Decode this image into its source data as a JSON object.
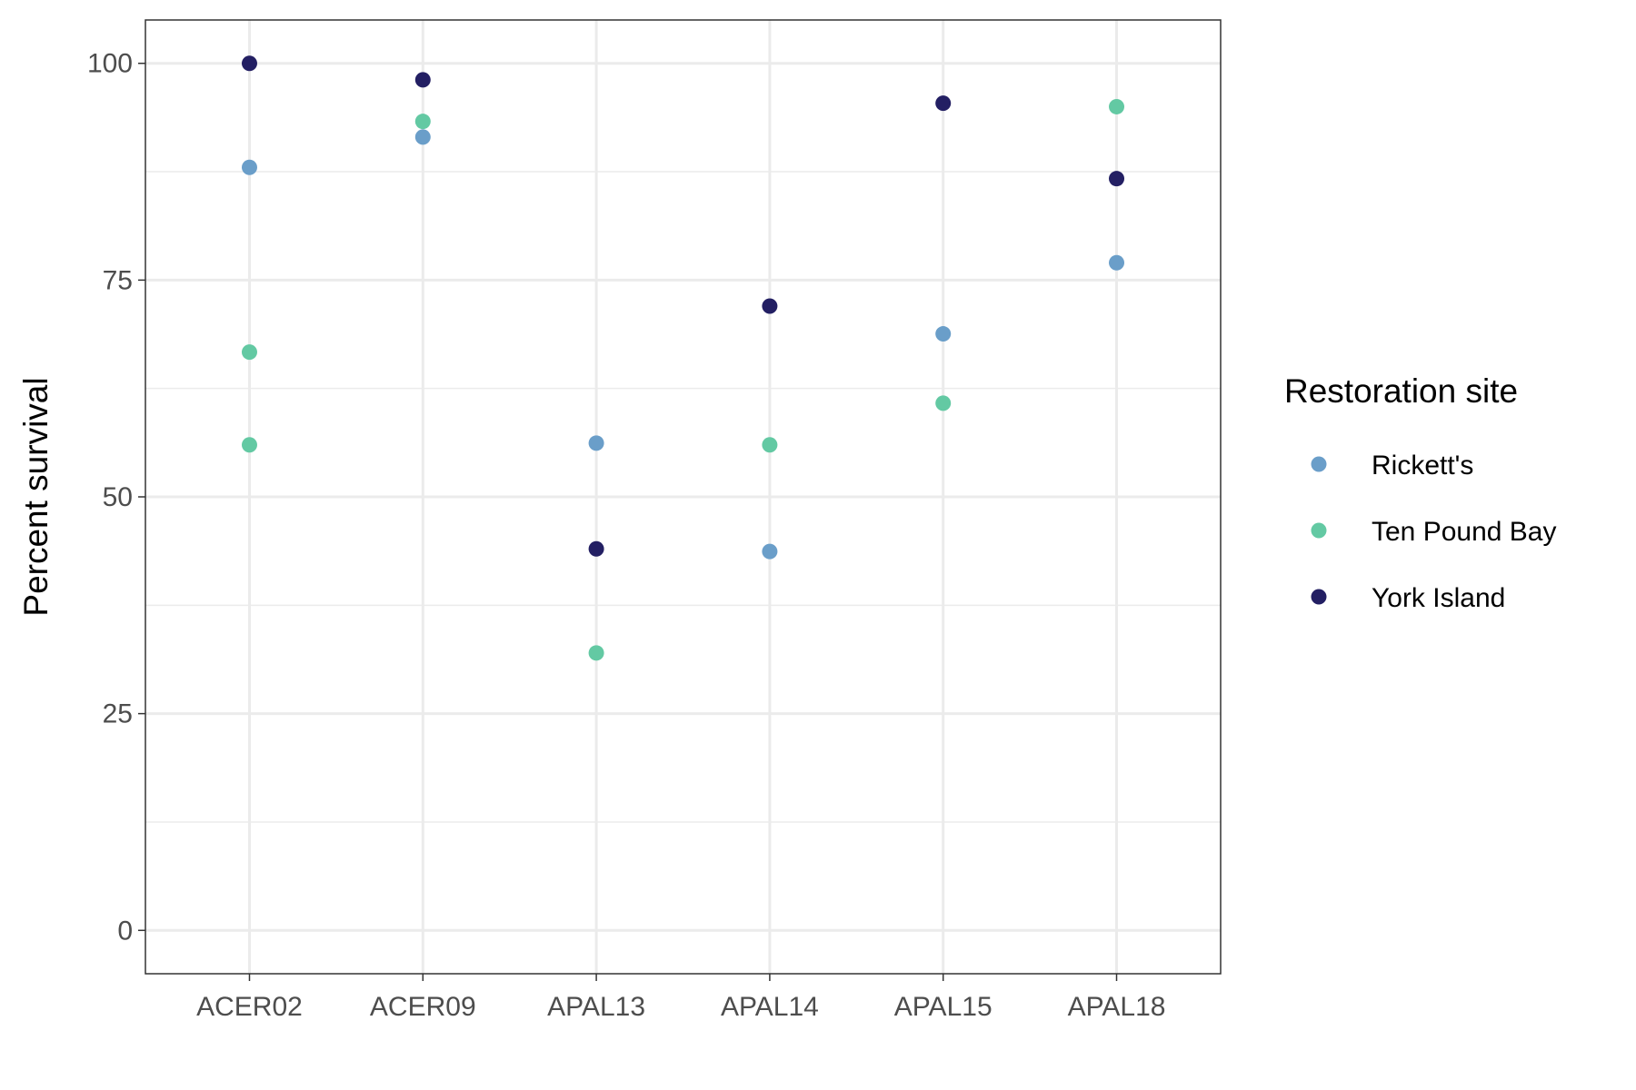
{
  "chart_data": {
    "type": "scatter",
    "title": "",
    "xlabel": "",
    "ylabel": "Percent survival",
    "categories": [
      "ACER02",
      "ACER09",
      "APAL13",
      "APAL14",
      "APAL15",
      "APAL18"
    ],
    "ylim": [
      -5,
      105
    ],
    "yticks": [
      0,
      25,
      50,
      75,
      100
    ],
    "grid": true,
    "legend": {
      "title": "Restoration site",
      "placement": "right"
    },
    "series": [
      {
        "name": "Rickett's",
        "color": "#6a9ec9",
        "points": [
          {
            "x": "ACER02",
            "y": 88.0
          },
          {
            "x": "ACER09",
            "y": 91.5
          },
          {
            "x": "APAL13",
            "y": 56.2
          },
          {
            "x": "APAL14",
            "y": 43.7
          },
          {
            "x": "APAL15",
            "y": 68.8
          },
          {
            "x": "APAL18",
            "y": 77.0
          }
        ]
      },
      {
        "name": "Ten Pound Bay",
        "color": "#63c9a3",
        "points": [
          {
            "x": "ACER02",
            "y": 66.7
          },
          {
            "x": "ACER02",
            "y": 56.0
          },
          {
            "x": "ACER09",
            "y": 93.3
          },
          {
            "x": "APAL13",
            "y": 32.0
          },
          {
            "x": "APAL14",
            "y": 56.0
          },
          {
            "x": "APAL15",
            "y": 60.8
          },
          {
            "x": "APAL18",
            "y": 95.0
          }
        ]
      },
      {
        "name": "York Island",
        "color": "#231f63",
        "points": [
          {
            "x": "ACER02",
            "y": 100.0
          },
          {
            "x": "ACER09",
            "y": 98.1
          },
          {
            "x": "APAL13",
            "y": 44.0
          },
          {
            "x": "APAL14",
            "y": 72.0
          },
          {
            "x": "APAL15",
            "y": 95.4
          },
          {
            "x": "APAL18",
            "y": 86.7
          }
        ]
      }
    ]
  }
}
